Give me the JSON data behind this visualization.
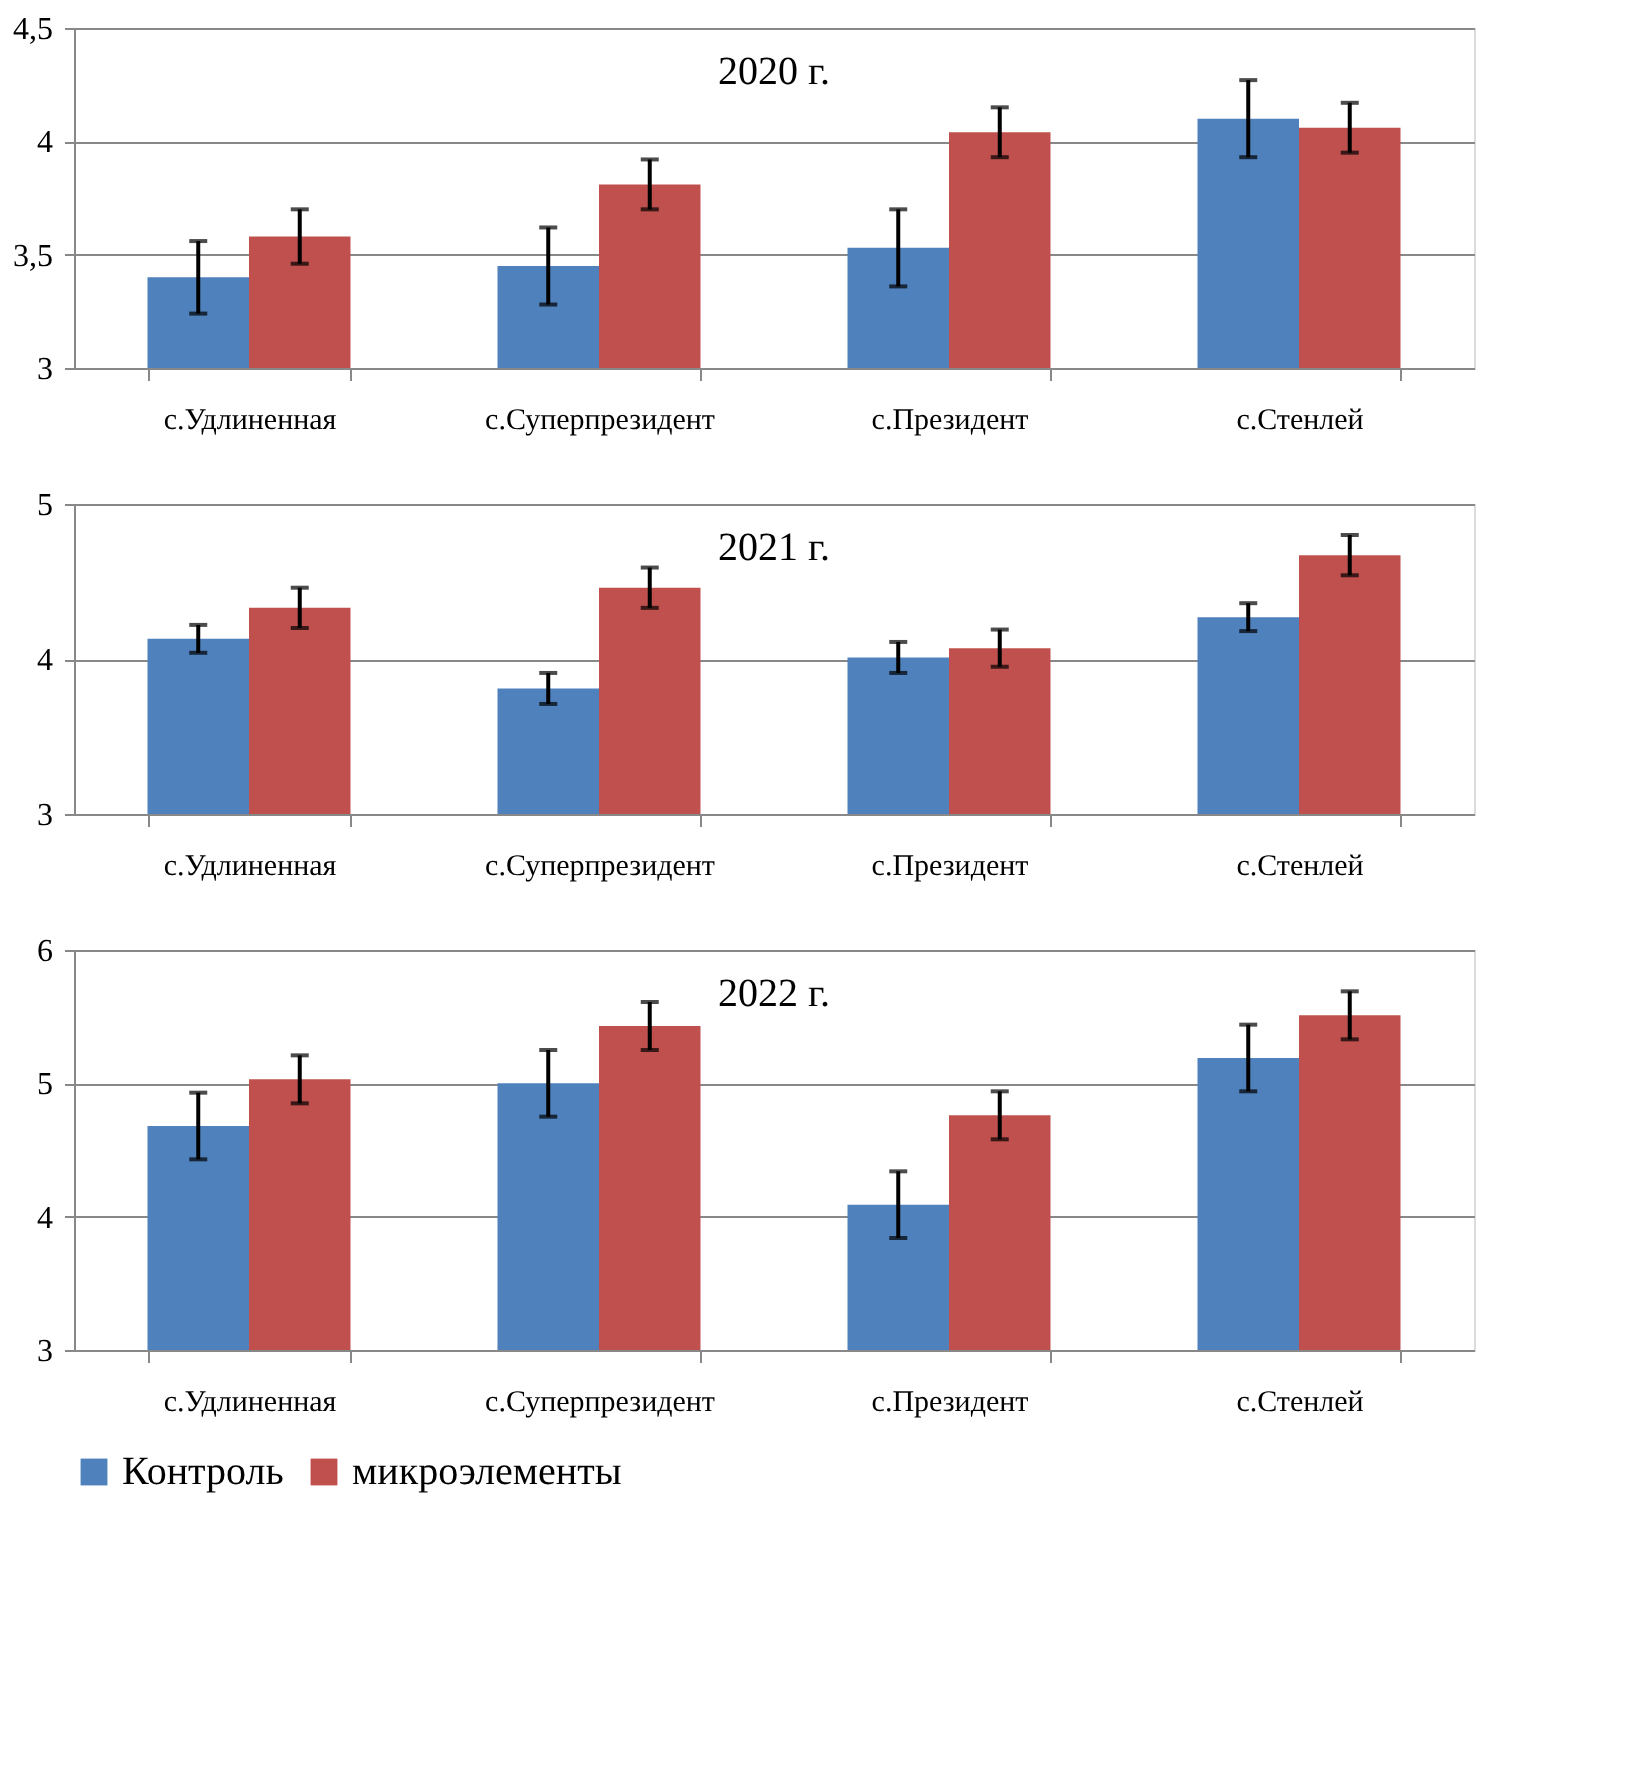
{
  "chart_data": [
    {
      "type": "bar",
      "title": "2020 г.",
      "categories": [
        "с.Удлиненная",
        "с.Суперпрезидент",
        "с.Президент",
        "с.Стенлей"
      ],
      "ylim": [
        3,
        4.5
      ],
      "yticks": [
        3,
        {
          "value": 3.5,
          "label": "3,5"
        },
        4,
        {
          "value": 4.5,
          "label": "4,5"
        }
      ],
      "grid": "y",
      "legend": false,
      "series": [
        {
          "color": "#4f81bd",
          "values": [
            3.4,
            3.45,
            3.53,
            4.1
          ],
          "errors": [
            0.16,
            0.17,
            0.17,
            0.17
          ]
        },
        {
          "color": "#c0504d",
          "values": [
            3.58,
            3.81,
            4.04,
            4.06
          ],
          "errors": [
            0.12,
            0.11,
            0.11,
            0.11
          ]
        }
      ]
    },
    {
      "type": "bar",
      "title": "2021 г.",
      "categories": [
        "с.Удлиненная",
        "с.Суперпрезидент",
        "с.Президент",
        "с.Стенлей"
      ],
      "ylim": [
        3,
        5
      ],
      "yticks": [
        3,
        4,
        5
      ],
      "grid": "y",
      "legend": false,
      "series": [
        {
          "color": "#4f81bd",
          "values": [
            4.13,
            3.81,
            4.01,
            4.27
          ],
          "errors": [
            0.09,
            0.1,
            0.1,
            0.09
          ]
        },
        {
          "color": "#c0504d",
          "values": [
            4.33,
            4.46,
            4.07,
            4.67
          ],
          "errors": [
            0.13,
            0.13,
            0.12,
            0.13
          ]
        }
      ]
    },
    {
      "type": "bar",
      "title": "2022 г.",
      "categories": [
        "с.Удлиненная",
        "с.Суперпрезидент",
        "с.Президент",
        "с.Стенлей"
      ],
      "ylim": [
        3,
        6
      ],
      "yticks": [
        3,
        4,
        5,
        6
      ],
      "grid": "y",
      "legend": "bottom",
      "series": [
        {
          "name": "Контроль",
          "color": "#4f81bd",
          "values": [
            4.68,
            5.0,
            4.09,
            5.19
          ],
          "errors": [
            0.25,
            0.25,
            0.25,
            0.25
          ]
        },
        {
          "name": "микроэлементы",
          "color": "#c0504d",
          "values": [
            5.03,
            5.43,
            4.76,
            5.51
          ],
          "errors": [
            0.18,
            0.18,
            0.18,
            0.18
          ]
        }
      ]
    }
  ]
}
